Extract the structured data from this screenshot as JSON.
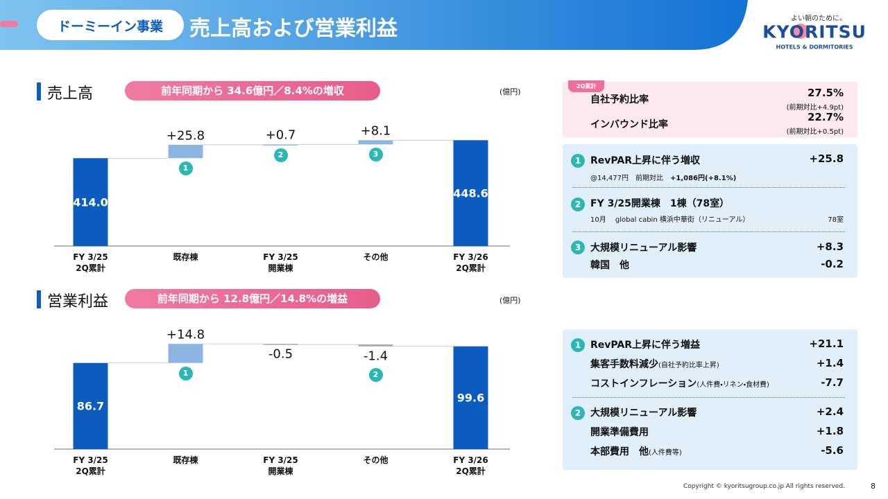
{
  "header": {
    "tag": "ドーミーイン事業",
    "title": "売上高および営業利益",
    "logo": {
      "tagline": "よい朝のために。",
      "brand": "KYORITSU",
      "sub": "HOTELS & DORMITORIES"
    }
  },
  "chart_data": [
    {
      "type": "waterfall",
      "title": "売上高",
      "subtitle": "前年同期から 34.6億円／8.4%の増収",
      "unit": "(億円)",
      "categories": [
        "FY 3/25\n2Q累計",
        "既存棟",
        "FY 3/25\n開業棟",
        "その他",
        "FY 3/26\n2Q累計"
      ],
      "measures": [
        "total",
        "relative",
        "relative",
        "relative",
        "total"
      ],
      "values": [
        414.0,
        25.8,
        0.7,
        8.1,
        448.6
      ],
      "value_labels": [
        "414.0",
        "+25.8",
        "+0.7",
        "+8.1",
        "448.6"
      ],
      "markers": [
        null,
        "1",
        "2",
        "3",
        null
      ],
      "colors": {
        "total": "#0b5cbe",
        "increase": "#8db5e3",
        "decrease": "#a6a6a6"
      },
      "ylim": [
        245,
        485
      ]
    },
    {
      "type": "waterfall",
      "title": "営業利益",
      "subtitle": "前年同期から 12.8億円／14.8%の増益",
      "unit": "(億円)",
      "categories": [
        "FY 3/25\n2Q累計",
        "既存棟",
        "FY 3/25\n開業棟",
        "その他",
        "FY 3/26\n2Q累計"
      ],
      "measures": [
        "total",
        "relative",
        "relative",
        "relative",
        "total"
      ],
      "values": [
        86.7,
        14.8,
        -0.5,
        -1.4,
        99.6
      ],
      "value_labels": [
        "86.7",
        "+14.8",
        "-0.5",
        "-1.4",
        "99.6"
      ],
      "markers": [
        null,
        "1",
        null,
        "2",
        null
      ],
      "colors": {
        "total": "#0b5cbe",
        "increase": "#8db5e3",
        "decrease": "#a6a6a6"
      },
      "ylim": [
        20,
        115
      ]
    }
  ],
  "summary": {
    "tag": "2Q累計",
    "rows": [
      {
        "label": "自社予約比率",
        "value": "27.5%",
        "note": "(前期対比+4.9pt)"
      },
      {
        "label": "インバウンド比率",
        "value": "22.7%",
        "note": "(前期対比+0.5pt)"
      }
    ]
  },
  "sales_panel": [
    {
      "num": "1",
      "title": "RevPAR上昇に伴う増収",
      "value": "+25.8",
      "detail": "@14,477円　前期対比",
      "detail_bold": "+1,086円(+8.1%)"
    },
    {
      "num": "2",
      "title": "FY 3/25開業棟　1棟（78室）",
      "detail": "10月　 global cabin 横浜中華街（リニューアル）",
      "detail_value": "78室"
    },
    {
      "num": "3",
      "title": "大規模リニューアル影響",
      "value": "+8.3",
      "row": "韓国　他",
      "row_value": "-0.2"
    }
  ],
  "profit_panel": [
    {
      "num": "1",
      "title": "RevPAR上昇に伴う増益",
      "value": "+21.1",
      "rows": [
        {
          "label": "集客手数料減少",
          "note": "(自社予約比率上昇)",
          "value": "+1.4"
        },
        {
          "label": "コストインフレーション",
          "note": "(人件費・リネン・食材費)",
          "value": "-7.7"
        }
      ]
    },
    {
      "num": "2",
      "title": "大規模リニューアル影響",
      "value": "+2.4",
      "rows": [
        {
          "label": "開業準備費用",
          "value": "+1.8"
        },
        {
          "label": "本部費用　他",
          "note": "(人件費等)",
          "value": "-5.6"
        }
      ]
    }
  ],
  "footer": {
    "copyright": "Copyright © kyoritsugroup.co.jp All rights reserved.",
    "page": "8"
  }
}
